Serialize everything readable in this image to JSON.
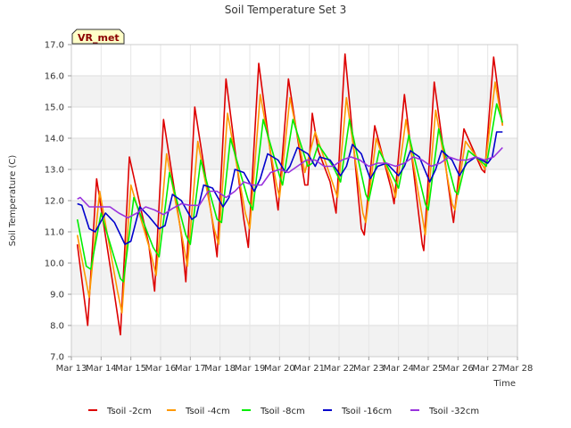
{
  "chart_data": {
    "type": "line",
    "title": "Soil Temperature Set 3",
    "xlabel": "Time",
    "ylabel": "Soil Temperature (C)",
    "site_label": "VR_met",
    "ylim": [
      7.0,
      17.0
    ],
    "xlim": [
      0,
      15
    ],
    "x_tick_labels": [
      "Mar 13",
      "Mar 14",
      "Mar 15",
      "Mar 16",
      "Mar 17",
      "Mar 18",
      "Mar 19",
      "Mar 20",
      "Mar 21",
      "Mar 22",
      "Mar 23",
      "Mar 24",
      "Mar 25",
      "Mar 26",
      "Mar 27",
      "Mar 28"
    ],
    "y_tick_labels": [
      "7.0",
      "8.0",
      "9.0",
      "10.0",
      "11.0",
      "12.0",
      "13.0",
      "14.0",
      "15.0",
      "16.0",
      "17.0"
    ],
    "x_start_date": "Mar 13",
    "grid": true,
    "banded_background": true,
    "legend_position": "bottom",
    "series": [
      {
        "name": "Tsoil -2cm",
        "color": "#dd0000",
        "points": [
          [
            0.2,
            10.6
          ],
          [
            0.55,
            8.0
          ],
          [
            0.85,
            12.7
          ],
          [
            1.45,
            9.0
          ],
          [
            1.65,
            7.7
          ],
          [
            1.95,
            13.4
          ],
          [
            2.6,
            10.6
          ],
          [
            2.8,
            9.1
          ],
          [
            3.1,
            14.6
          ],
          [
            3.7,
            10.9
          ],
          [
            3.85,
            9.4
          ],
          [
            4.15,
            15.0
          ],
          [
            4.75,
            11.3
          ],
          [
            4.9,
            10.2
          ],
          [
            5.2,
            15.9
          ],
          [
            5.8,
            11.4
          ],
          [
            5.95,
            10.5
          ],
          [
            6.3,
            16.4
          ],
          [
            6.85,
            12.4
          ],
          [
            6.95,
            11.7
          ],
          [
            7.3,
            15.9
          ],
          [
            7.85,
            12.5
          ],
          [
            7.95,
            12.5
          ],
          [
            8.1,
            14.8
          ],
          [
            8.3,
            13.6
          ],
          [
            8.7,
            12.6
          ],
          [
            8.9,
            11.6
          ],
          [
            9.2,
            16.7
          ],
          [
            9.75,
            11.1
          ],
          [
            9.85,
            10.9
          ],
          [
            10.2,
            14.4
          ],
          [
            10.75,
            12.4
          ],
          [
            10.85,
            11.9
          ],
          [
            11.2,
            15.4
          ],
          [
            11.8,
            10.6
          ],
          [
            11.85,
            10.4
          ],
          [
            12.2,
            15.8
          ],
          [
            12.8,
            11.6
          ],
          [
            12.85,
            11.3
          ],
          [
            13.2,
            14.3
          ],
          [
            13.8,
            13.0
          ],
          [
            13.9,
            12.9
          ],
          [
            14.2,
            16.6
          ],
          [
            14.5,
            14.4
          ]
        ]
      },
      {
        "name": "Tsoil -4cm",
        "color": "#ff9900",
        "points": [
          [
            0.2,
            10.9
          ],
          [
            0.6,
            8.9
          ],
          [
            0.95,
            12.3
          ],
          [
            1.55,
            9.1
          ],
          [
            1.7,
            8.4
          ],
          [
            2.0,
            12.5
          ],
          [
            2.65,
            10.4
          ],
          [
            2.85,
            9.6
          ],
          [
            3.2,
            13.5
          ],
          [
            3.75,
            10.7
          ],
          [
            3.9,
            9.9
          ],
          [
            4.25,
            13.9
          ],
          [
            4.8,
            11.1
          ],
          [
            4.95,
            10.6
          ],
          [
            5.25,
            14.8
          ],
          [
            5.85,
            11.6
          ],
          [
            6.0,
            11.1
          ],
          [
            6.35,
            15.4
          ],
          [
            6.9,
            12.5
          ],
          [
            7.0,
            12.1
          ],
          [
            7.35,
            15.3
          ],
          [
            7.85,
            12.9
          ],
          [
            8.2,
            14.2
          ],
          [
            8.7,
            12.8
          ],
          [
            8.95,
            12.1
          ],
          [
            9.25,
            15.3
          ],
          [
            9.8,
            11.6
          ],
          [
            9.9,
            11.3
          ],
          [
            10.25,
            14.0
          ],
          [
            10.8,
            12.5
          ],
          [
            10.9,
            12.1
          ],
          [
            11.25,
            14.6
          ],
          [
            11.85,
            11.2
          ],
          [
            11.9,
            10.9
          ],
          [
            12.25,
            14.9
          ],
          [
            12.8,
            11.9
          ],
          [
            12.9,
            11.7
          ],
          [
            13.25,
            13.9
          ],
          [
            13.85,
            13.1
          ],
          [
            13.9,
            13.0
          ],
          [
            14.25,
            15.8
          ],
          [
            14.5,
            14.4
          ]
        ]
      },
      {
        "name": "Tsoil -8cm",
        "color": "#00ee00",
        "points": [
          [
            0.2,
            11.4
          ],
          [
            0.5,
            9.9
          ],
          [
            0.65,
            9.8
          ],
          [
            1.0,
            11.6
          ],
          [
            1.65,
            9.5
          ],
          [
            1.75,
            9.4
          ],
          [
            2.1,
            12.1
          ],
          [
            2.75,
            10.5
          ],
          [
            2.95,
            10.2
          ],
          [
            3.3,
            12.9
          ],
          [
            3.85,
            10.9
          ],
          [
            4.0,
            10.6
          ],
          [
            4.35,
            13.3
          ],
          [
            4.9,
            11.4
          ],
          [
            5.05,
            11.3
          ],
          [
            5.35,
            14.0
          ],
          [
            5.95,
            12.0
          ],
          [
            6.1,
            11.7
          ],
          [
            6.45,
            14.6
          ],
          [
            7.0,
            12.8
          ],
          [
            7.1,
            12.5
          ],
          [
            7.45,
            14.6
          ],
          [
            7.95,
            13.1
          ],
          [
            8.1,
            13.2
          ],
          [
            8.3,
            13.8
          ],
          [
            8.8,
            13.1
          ],
          [
            9.05,
            12.6
          ],
          [
            9.35,
            14.6
          ],
          [
            9.9,
            12.2
          ],
          [
            10.0,
            12.0
          ],
          [
            10.35,
            13.6
          ],
          [
            10.9,
            12.6
          ],
          [
            11.0,
            12.4
          ],
          [
            11.35,
            14.1
          ],
          [
            11.9,
            11.9
          ],
          [
            12.0,
            11.7
          ],
          [
            12.35,
            14.3
          ],
          [
            12.9,
            12.3
          ],
          [
            13.0,
            12.2
          ],
          [
            13.35,
            13.6
          ],
          [
            13.85,
            13.2
          ],
          [
            13.95,
            13.1
          ],
          [
            14.3,
            15.1
          ],
          [
            14.5,
            14.5
          ]
        ]
      },
      {
        "name": "Tsoil -16cm",
        "color": "#0000cc",
        "points": [
          [
            0.2,
            11.9
          ],
          [
            0.35,
            11.85
          ],
          [
            0.6,
            11.1
          ],
          [
            0.8,
            11.0
          ],
          [
            1.15,
            11.6
          ],
          [
            1.45,
            11.3
          ],
          [
            1.8,
            10.6
          ],
          [
            2.0,
            10.7
          ],
          [
            2.3,
            11.8
          ],
          [
            2.6,
            11.5
          ],
          [
            2.95,
            11.1
          ],
          [
            3.15,
            11.2
          ],
          [
            3.4,
            12.2
          ],
          [
            3.7,
            12.0
          ],
          [
            4.05,
            11.4
          ],
          [
            4.2,
            11.5
          ],
          [
            4.45,
            12.5
          ],
          [
            4.75,
            12.4
          ],
          [
            5.1,
            11.8
          ],
          [
            5.3,
            12.1
          ],
          [
            5.5,
            13.0
          ],
          [
            5.8,
            12.9
          ],
          [
            6.15,
            12.3
          ],
          [
            6.35,
            12.7
          ],
          [
            6.6,
            13.5
          ],
          [
            6.95,
            13.3
          ],
          [
            7.2,
            12.9
          ],
          [
            7.35,
            13.1
          ],
          [
            7.6,
            13.7
          ],
          [
            7.95,
            13.5
          ],
          [
            8.2,
            13.1
          ],
          [
            8.35,
            13.4
          ],
          [
            8.7,
            13.3
          ],
          [
            9.05,
            12.8
          ],
          [
            9.25,
            13.1
          ],
          [
            9.45,
            13.8
          ],
          [
            9.75,
            13.5
          ],
          [
            10.05,
            12.7
          ],
          [
            10.3,
            13.1
          ],
          [
            10.6,
            13.2
          ],
          [
            11.0,
            12.8
          ],
          [
            11.2,
            13.1
          ],
          [
            11.4,
            13.6
          ],
          [
            11.7,
            13.4
          ],
          [
            12.05,
            12.6
          ],
          [
            12.25,
            13.0
          ],
          [
            12.45,
            13.6
          ],
          [
            12.8,
            13.3
          ],
          [
            13.05,
            12.8
          ],
          [
            13.3,
            13.2
          ],
          [
            13.6,
            13.4
          ],
          [
            14.0,
            13.2
          ],
          [
            14.15,
            13.4
          ],
          [
            14.3,
            14.2
          ],
          [
            14.5,
            14.2
          ]
        ]
      },
      {
        "name": "Tsoil -32cm",
        "color": "#9933dd",
        "points": [
          [
            0.2,
            12.05
          ],
          [
            0.3,
            12.1
          ],
          [
            0.6,
            11.8
          ],
          [
            1.0,
            11.8
          ],
          [
            1.3,
            11.8
          ],
          [
            1.6,
            11.6
          ],
          [
            1.9,
            11.45
          ],
          [
            2.2,
            11.6
          ],
          [
            2.5,
            11.8
          ],
          [
            2.8,
            11.7
          ],
          [
            3.1,
            11.55
          ],
          [
            3.4,
            11.75
          ],
          [
            3.7,
            11.9
          ],
          [
            4.0,
            11.85
          ],
          [
            4.3,
            11.85
          ],
          [
            4.6,
            12.3
          ],
          [
            4.9,
            12.3
          ],
          [
            5.2,
            12.1
          ],
          [
            5.5,
            12.3
          ],
          [
            5.8,
            12.6
          ],
          [
            6.1,
            12.5
          ],
          [
            6.4,
            12.5
          ],
          [
            6.7,
            12.9
          ],
          [
            7.0,
            13.0
          ],
          [
            7.3,
            12.9
          ],
          [
            7.6,
            13.1
          ],
          [
            7.9,
            13.3
          ],
          [
            8.2,
            13.3
          ],
          [
            8.5,
            13.1
          ],
          [
            8.8,
            13.1
          ],
          [
            9.1,
            13.3
          ],
          [
            9.4,
            13.4
          ],
          [
            9.7,
            13.3
          ],
          [
            10.0,
            13.1
          ],
          [
            10.3,
            13.2
          ],
          [
            10.6,
            13.2
          ],
          [
            10.9,
            13.1
          ],
          [
            11.2,
            13.2
          ],
          [
            11.5,
            13.4
          ],
          [
            11.8,
            13.3
          ],
          [
            12.1,
            13.1
          ],
          [
            12.4,
            13.2
          ],
          [
            12.7,
            13.4
          ],
          [
            13.0,
            13.3
          ],
          [
            13.3,
            13.3
          ],
          [
            13.6,
            13.4
          ],
          [
            13.9,
            13.3
          ],
          [
            14.2,
            13.4
          ],
          [
            14.4,
            13.6
          ],
          [
            14.5,
            13.7
          ]
        ]
      }
    ]
  }
}
